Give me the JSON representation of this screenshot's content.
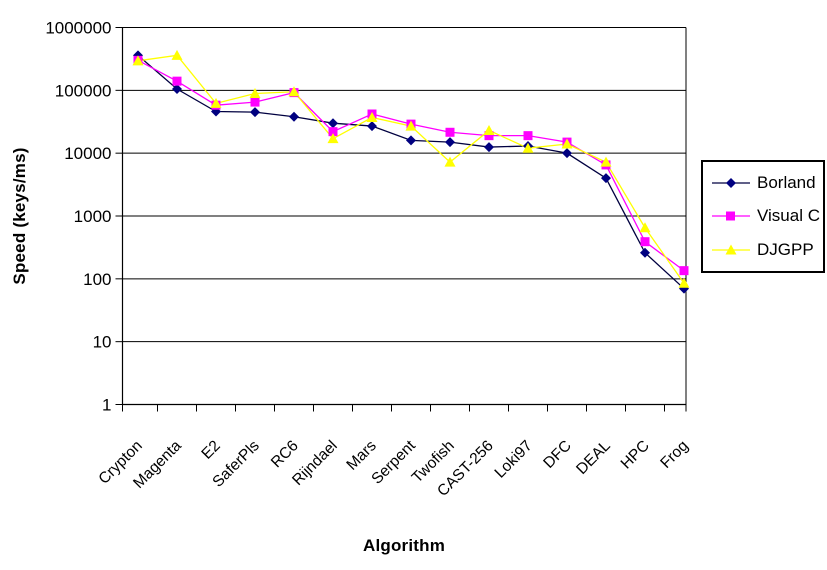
{
  "chart_data": {
    "type": "line",
    "title": "",
    "xlabel": "Algorithm",
    "ylabel": "Speed (keys/ms)",
    "y_scale": "log",
    "ylim": [
      1,
      1000000
    ],
    "yticks": [
      1,
      10,
      100,
      1000,
      10000,
      100000,
      1000000
    ],
    "ytick_labels": [
      "1",
      "10",
      "100",
      "1000",
      "10000",
      "100000",
      "1000000"
    ],
    "grid": "horizontal",
    "legend_position": "right",
    "categories": [
      "Crypton",
      "Magenta",
      "E2",
      "SaferPls",
      "RC6",
      "Rijndael",
      "Mars",
      "Serpent",
      "Twofish",
      "CAST-256",
      "Loki97",
      "DFC",
      "DEAL",
      "HPC",
      "Frog"
    ],
    "series": [
      {
        "name": "Borland",
        "marker": "diamond-icon",
        "color": "#000080",
        "line_color": "#000040",
        "values": [
          360000,
          105000,
          46000,
          45000,
          38000,
          30000,
          27000,
          16000,
          15000,
          12500,
          13000,
          10000,
          4000,
          260,
          70
        ]
      },
      {
        "name": "Visual C",
        "marker": "square-icon",
        "color": "#FF00FF",
        "line_color": "#FF00FF",
        "values": [
          300000,
          140000,
          58000,
          65000,
          92000,
          22000,
          42000,
          29000,
          21500,
          19000,
          19000,
          15000,
          6500,
          390,
          135
        ]
      },
      {
        "name": "DJGPP",
        "marker": "triangle-icon",
        "color": "#FFFF00",
        "line_color": "#FFFF00",
        "values": [
          295000,
          360000,
          62000,
          89000,
          95000,
          17000,
          37000,
          27000,
          7200,
          23000,
          12000,
          14000,
          7200,
          650,
          85
        ]
      }
    ]
  }
}
